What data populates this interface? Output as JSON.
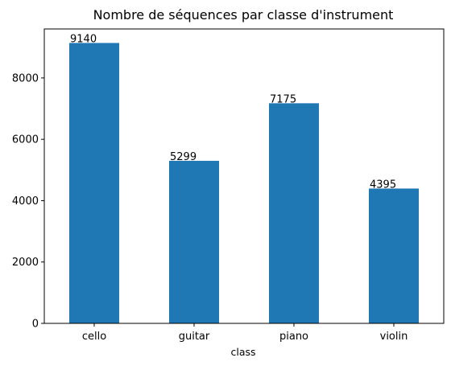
{
  "chart_data": {
    "type": "bar",
    "title": "Nombre de séquences par classe d'instrument",
    "xlabel": "class",
    "ylabel": "",
    "categories": [
      "cello",
      "guitar",
      "piano",
      "violin"
    ],
    "values": [
      9140,
      5299,
      7175,
      4395
    ],
    "data_labels": [
      "9140",
      "5299",
      "7175",
      "4395"
    ],
    "ylim": [
      0,
      9597
    ],
    "yticks": [
      0,
      2000,
      4000,
      6000,
      8000
    ],
    "ytick_labels": [
      "0",
      "2000",
      "4000",
      "6000",
      "8000"
    ],
    "bar_color": "#1f77b4",
    "grid": false,
    "legend": "none"
  }
}
